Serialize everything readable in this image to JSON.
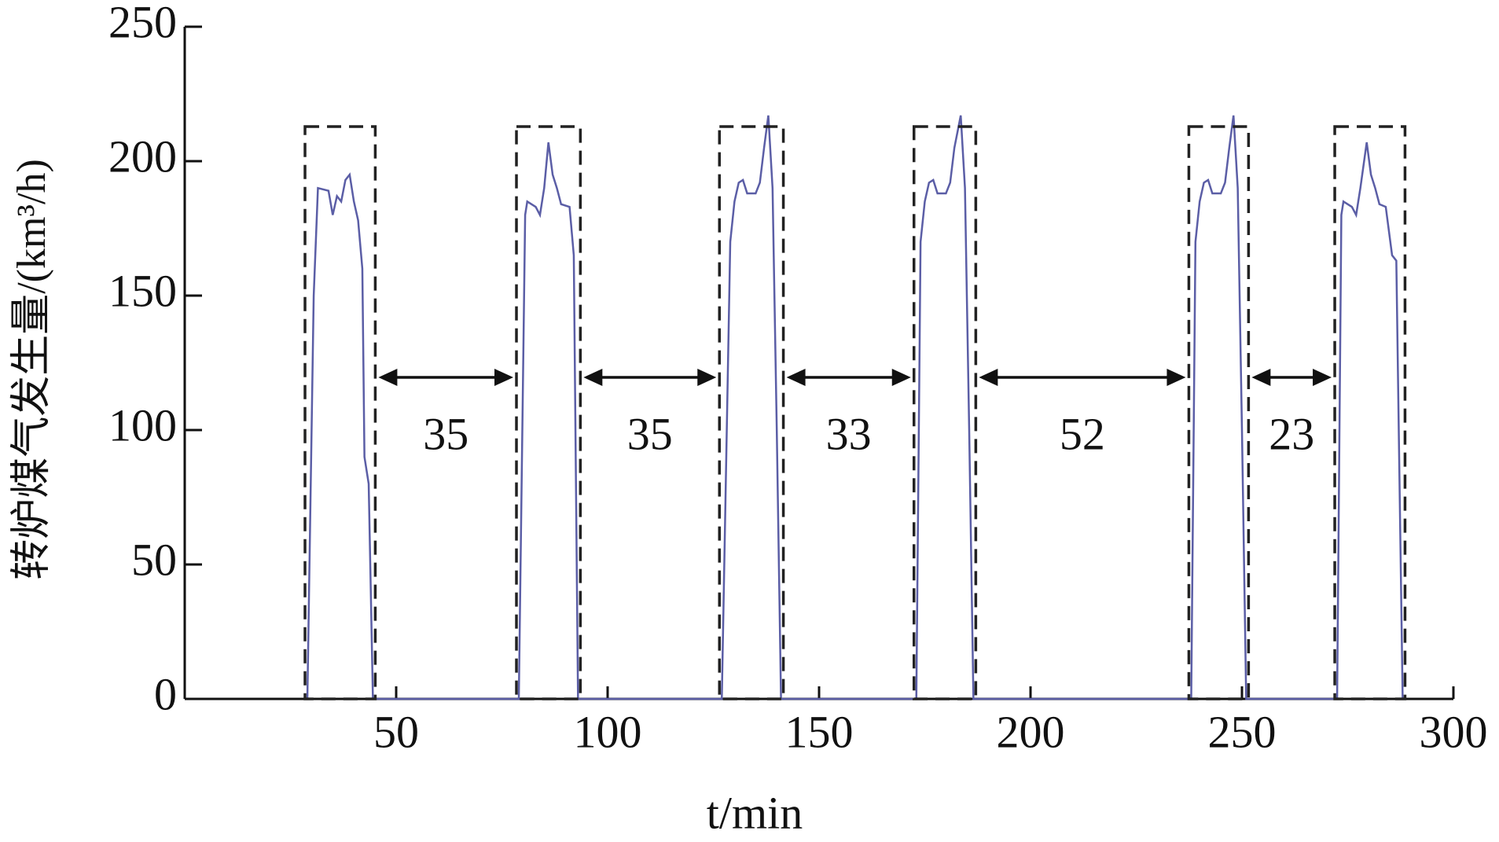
{
  "chart_data": {
    "type": "line",
    "x_label": "t/min",
    "y_label": "转炉煤气发生量/(km³/h)",
    "xlim": [
      0,
      300
    ],
    "xticks": [
      50,
      100,
      150,
      200,
      250,
      300
    ],
    "ylim": [
      0,
      250
    ],
    "yticks": [
      0,
      50,
      100,
      150,
      200,
      250
    ],
    "series": [
      {
        "color": "#5b5ea6",
        "x": [
          29,
          30.5,
          31.5,
          34,
          35,
          36,
          37,
          38,
          39,
          40,
          41,
          42,
          42.5,
          43.5,
          44.5,
          79,
          80.5,
          81,
          83,
          84,
          85,
          86,
          87,
          88,
          89,
          91,
          92,
          93,
          127,
          129,
          130,
          131,
          132,
          133,
          135,
          136,
          137,
          138,
          139,
          140,
          141,
          173,
          174,
          175,
          176,
          177,
          178,
          180,
          181,
          182,
          183.5,
          184.5,
          185.5,
          186.5,
          238,
          239,
          240,
          241,
          242,
          243,
          245,
          246,
          247,
          248,
          249,
          250,
          251,
          272.5,
          273.5,
          274,
          276,
          277,
          278,
          279.5,
          280.5,
          281.5,
          282.5,
          284,
          285.5,
          286.5,
          288
        ],
        "values": [
          0,
          150,
          190,
          189,
          180,
          187,
          185,
          193,
          195,
          185,
          178,
          160,
          90,
          80,
          0,
          0,
          180,
          185,
          183,
          180,
          190,
          207,
          195,
          190,
          184,
          183,
          165,
          0,
          0,
          170,
          185,
          192,
          193,
          188,
          188,
          192,
          205,
          217,
          190,
          100,
          0,
          0,
          170,
          185,
          192,
          193,
          188,
          188,
          192,
          205,
          217,
          190,
          100,
          0,
          0,
          170,
          185,
          192,
          193,
          188,
          188,
          192,
          205,
          217,
          190,
          100,
          0,
          0,
          180,
          185,
          183,
          180,
          190,
          207,
          195,
          190,
          184,
          183,
          165,
          163,
          0
        ]
      }
    ],
    "annotations": [
      "35",
      "35",
      "33",
      "52",
      "23"
    ]
  }
}
